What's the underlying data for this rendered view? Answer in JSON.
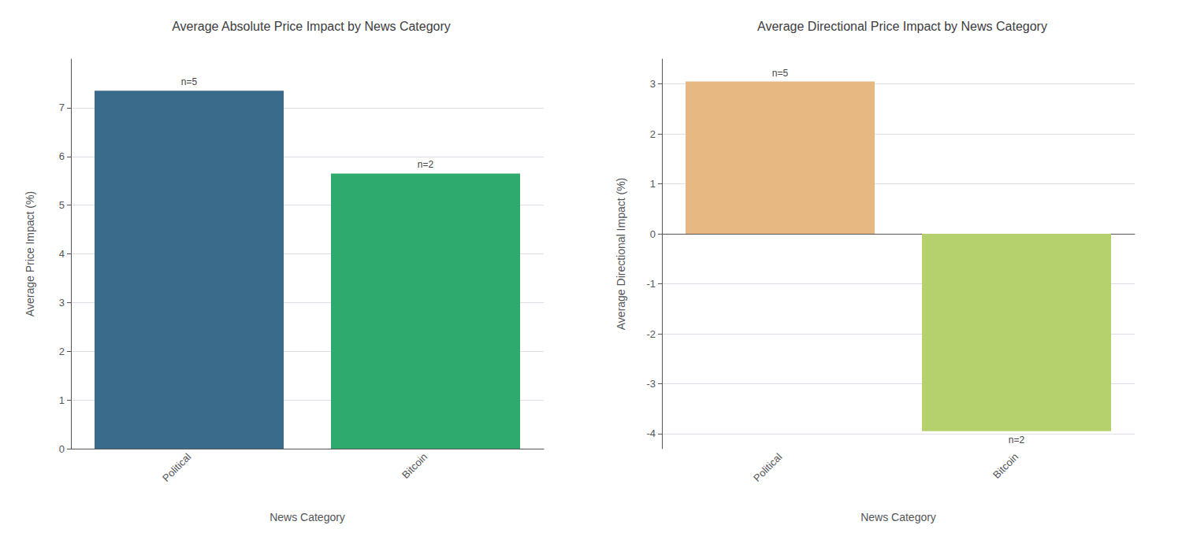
{
  "chart_data": [
    {
      "type": "bar",
      "title": "Average Absolute Price Impact by News Category",
      "xlabel": "News Category",
      "ylabel": "Average Price Impact (%)",
      "categories": [
        "Political",
        "Bitcoin"
      ],
      "values": [
        7.35,
        5.65
      ],
      "colors": [
        "#3a6b8a",
        "#2eaa6f"
      ],
      "annotations": [
        "n=5",
        "n=2"
      ],
      "ylim": [
        0,
        8.0
      ],
      "yticks": [
        0,
        1,
        2,
        3,
        4,
        5,
        6,
        7
      ],
      "grid": true
    },
    {
      "type": "bar",
      "title": "Average Directional Price Impact by News Category",
      "xlabel": "News Category",
      "ylabel": "Average Directional Impact (%)",
      "categories": [
        "Political",
        "Bitcoin"
      ],
      "values": [
        3.05,
        -3.95
      ],
      "colors": [
        "#e8b882",
        "#b5d16e"
      ],
      "annotations": [
        "n=5",
        "n=2"
      ],
      "ylim": [
        -4.3,
        3.5
      ],
      "yticks": [
        -4,
        -3,
        -2,
        -1,
        0,
        1,
        2,
        3
      ],
      "grid": true
    }
  ]
}
